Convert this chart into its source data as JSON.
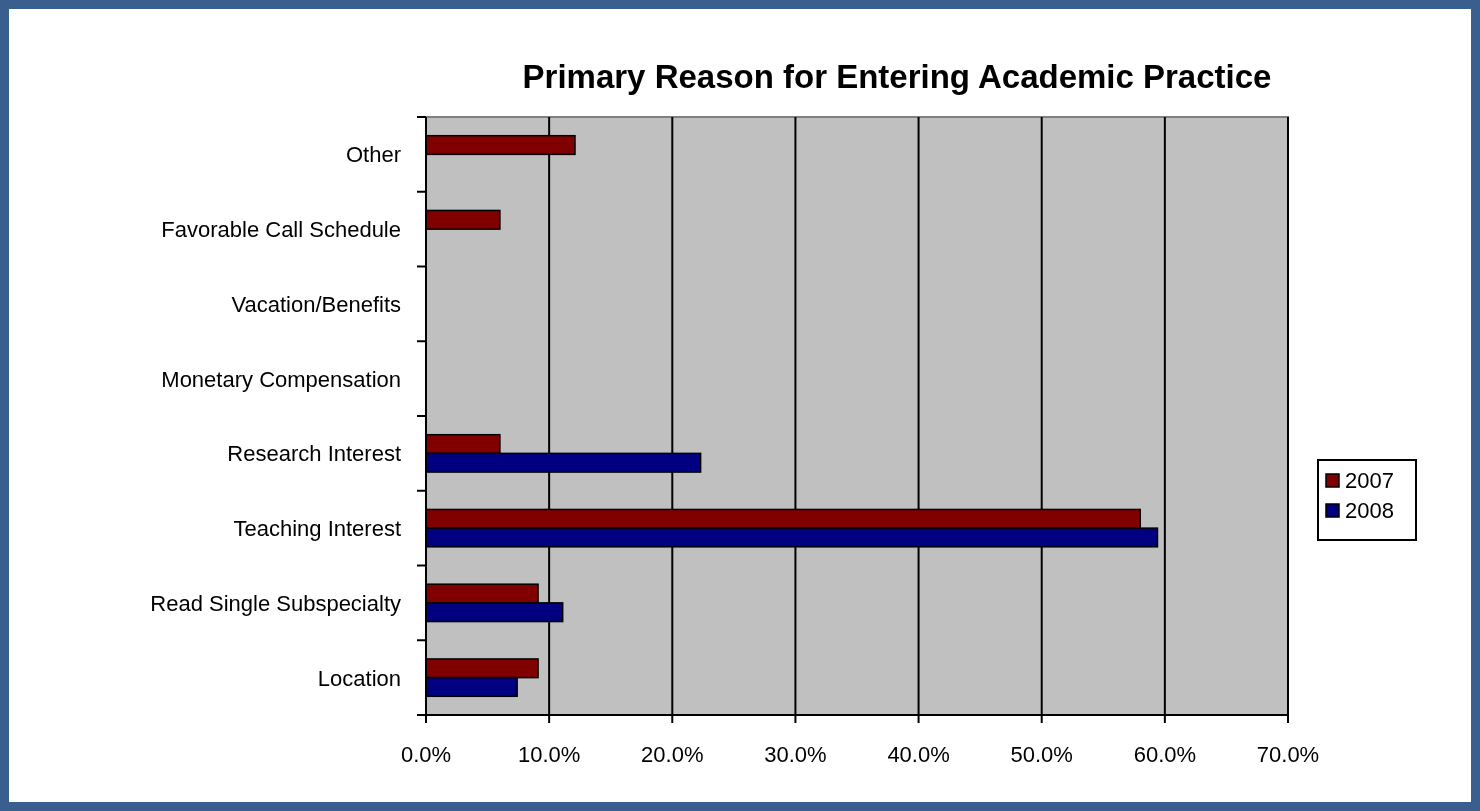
{
  "chart_data": {
    "type": "bar",
    "orientation": "horizontal",
    "title": "Primary Reason for Entering Academic Practice",
    "categories": [
      "Other",
      "Favorable Call Schedule",
      "Vacation/Benefits",
      "Monetary Compensation",
      "Research Interest",
      "Teaching Interest",
      "Read Single Subspecialty",
      "Location"
    ],
    "series": [
      {
        "name": "2007",
        "color": "#800000",
        "values": [
          12.1,
          6.0,
          0,
          0,
          6.0,
          58.0,
          9.1,
          9.1
        ]
      },
      {
        "name": "2008",
        "color": "#000080",
        "values": [
          0,
          0,
          0,
          0,
          22.3,
          59.4,
          11.1,
          7.4
        ]
      }
    ],
    "xlim": [
      0,
      70
    ],
    "xticks": [
      {
        "value": 0,
        "label": "0.0%"
      },
      {
        "value": 10,
        "label": "10.0%"
      },
      {
        "value": 20,
        "label": "20.0%"
      },
      {
        "value": 30,
        "label": "30.0%"
      },
      {
        "value": 40,
        "label": "40.0%"
      },
      {
        "value": 50,
        "label": "50.0%"
      },
      {
        "value": 60,
        "label": "60.0%"
      },
      {
        "value": 70,
        "label": "70.0%"
      }
    ],
    "grid": "x",
    "legend": "right"
  }
}
